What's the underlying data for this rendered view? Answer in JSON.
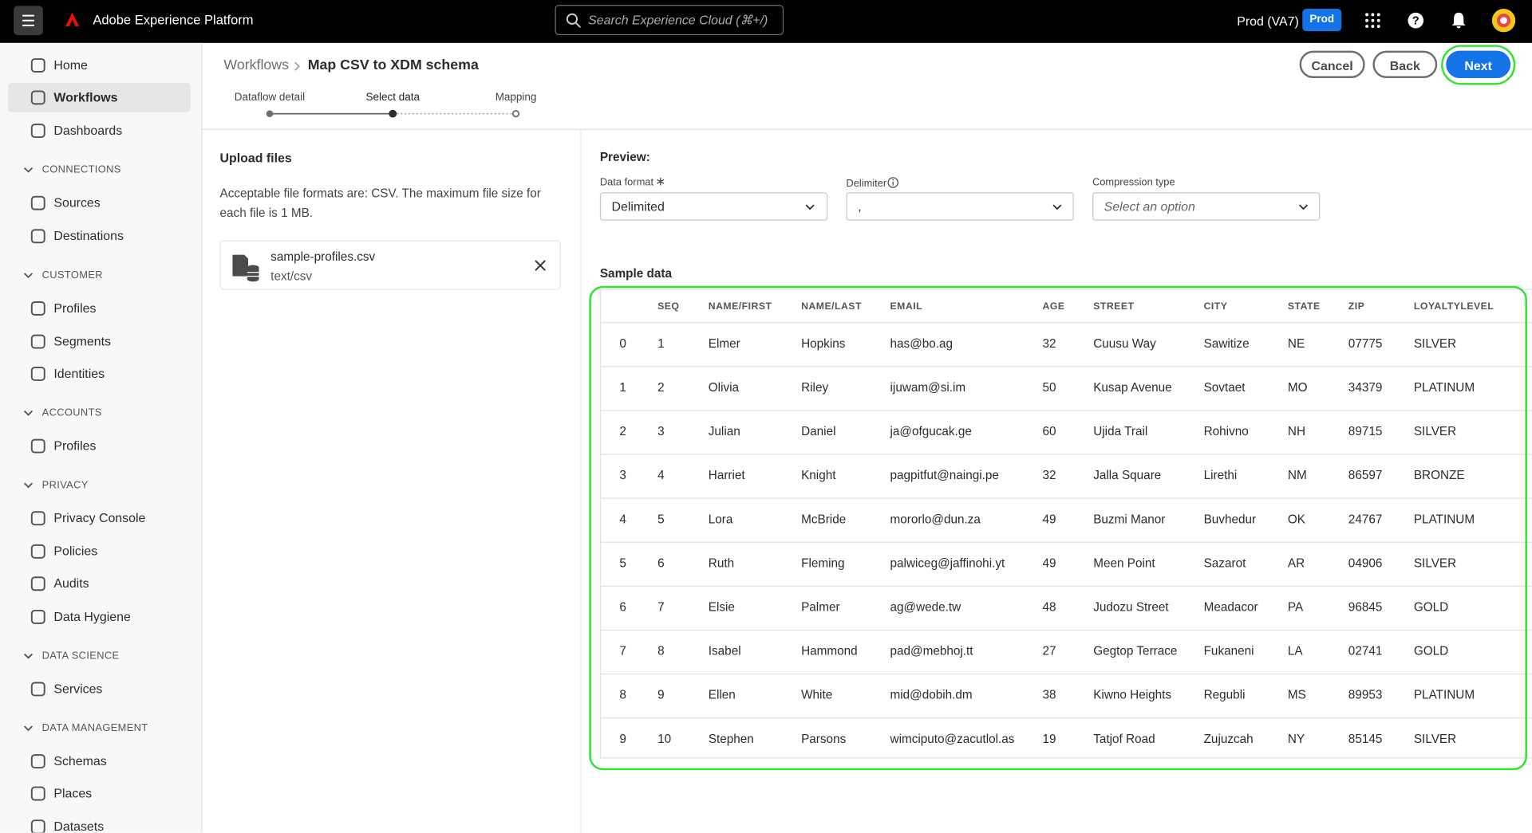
{
  "header": {
    "product": "Adobe Experience Platform",
    "search_placeholder": "Search Experience Cloud (⌘+/)",
    "environment": "Prod (VA7)",
    "badge": "Prod"
  },
  "sidebar": {
    "items": [
      {
        "label": "Home",
        "kind": "item"
      },
      {
        "label": "Workflows",
        "kind": "item",
        "selected": true
      },
      {
        "label": "Dashboards",
        "kind": "item"
      },
      {
        "label": "CONNECTIONS",
        "kind": "section"
      },
      {
        "label": "Sources",
        "kind": "item"
      },
      {
        "label": "Destinations",
        "kind": "item"
      },
      {
        "label": "CUSTOMER",
        "kind": "section"
      },
      {
        "label": "Profiles",
        "kind": "item"
      },
      {
        "label": "Segments",
        "kind": "item"
      },
      {
        "label": "Identities",
        "kind": "item"
      },
      {
        "label": "ACCOUNTS",
        "kind": "section"
      },
      {
        "label": "Profiles",
        "kind": "item"
      },
      {
        "label": "PRIVACY",
        "kind": "section"
      },
      {
        "label": "Privacy Console",
        "kind": "item"
      },
      {
        "label": "Policies",
        "kind": "item"
      },
      {
        "label": "Audits",
        "kind": "item"
      },
      {
        "label": "Data Hygiene",
        "kind": "item"
      },
      {
        "label": "DATA SCIENCE",
        "kind": "section"
      },
      {
        "label": "Services",
        "kind": "item"
      },
      {
        "label": "DATA MANAGEMENT",
        "kind": "section"
      },
      {
        "label": "Schemas",
        "kind": "item"
      },
      {
        "label": "Places",
        "kind": "item"
      },
      {
        "label": "Datasets",
        "kind": "item"
      }
    ]
  },
  "breadcrumb": {
    "parent": "Workflows",
    "current": "Map CSV to XDM schema"
  },
  "buttons": {
    "cancel": "Cancel",
    "back": "Back",
    "next": "Next"
  },
  "steps": [
    "Dataflow detail",
    "Select data",
    "Mapping"
  ],
  "upload": {
    "title": "Upload files",
    "description": "Acceptable file formats are: CSV. The maximum file size for each file is 1 MB.",
    "file_name": "sample-profiles.csv",
    "file_type": "text/csv"
  },
  "preview": {
    "title": "Preview:",
    "data_format_label": "Data format",
    "data_format_value": "Delimited",
    "delimiter_label": "Delimiter",
    "delimiter_value": ",",
    "compression_label": "Compression type",
    "compression_placeholder": "Select an option"
  },
  "table": {
    "title": "Sample data",
    "headers": [
      "SEQ",
      "NAME/FIRST",
      "NAME/LAST",
      "EMAIL",
      "AGE",
      "STREET",
      "CITY",
      "STATE",
      "ZIP",
      "LOYALTYLEVEL"
    ],
    "rows": [
      [
        "0",
        "1",
        "Elmer",
        "Hopkins",
        "has@bo.ag",
        "32",
        "Cuusu Way",
        "Sawitize",
        "NE",
        "07775",
        "SILVER"
      ],
      [
        "1",
        "2",
        "Olivia",
        "Riley",
        "ijuwam@si.im",
        "50",
        "Kusap Avenue",
        "Sovtaet",
        "MO",
        "34379",
        "PLATINUM"
      ],
      [
        "2",
        "3",
        "Julian",
        "Daniel",
        "ja@ofgucak.ge",
        "60",
        "Ujida Trail",
        "Rohivno",
        "NH",
        "89715",
        "SILVER"
      ],
      [
        "3",
        "4",
        "Harriet",
        "Knight",
        "pagpitfut@naingi.pe",
        "32",
        "Jalla Square",
        "Lirethi",
        "NM",
        "86597",
        "BRONZE"
      ],
      [
        "4",
        "5",
        "Lora",
        "McBride",
        "mororlo@dun.za",
        "49",
        "Buzmi Manor",
        "Buvhedur",
        "OK",
        "24767",
        "PLATINUM"
      ],
      [
        "5",
        "6",
        "Ruth",
        "Fleming",
        "palwiceg@jaffinohi.yt",
        "49",
        "Meen Point",
        "Sazarot",
        "AR",
        "04906",
        "SILVER"
      ],
      [
        "6",
        "7",
        "Elsie",
        "Palmer",
        "ag@wede.tw",
        "48",
        "Judozu Street",
        "Meadacor",
        "PA",
        "96845",
        "GOLD"
      ],
      [
        "7",
        "8",
        "Isabel",
        "Hammond",
        "pad@mebhoj.tt",
        "27",
        "Gegtop Terrace",
        "Fukaneni",
        "LA",
        "02741",
        "GOLD"
      ],
      [
        "8",
        "9",
        "Ellen",
        "White",
        "mid@dobih.dm",
        "38",
        "Kiwno Heights",
        "Regubli",
        "MS",
        "89953",
        "PLATINUM"
      ],
      [
        "9",
        "10",
        "Stephen",
        "Parsons",
        "wimciputo@zacutlol.as",
        "19",
        "Tatjof Road",
        "Zujuzcah",
        "NY",
        "85145",
        "SILVER"
      ]
    ]
  }
}
